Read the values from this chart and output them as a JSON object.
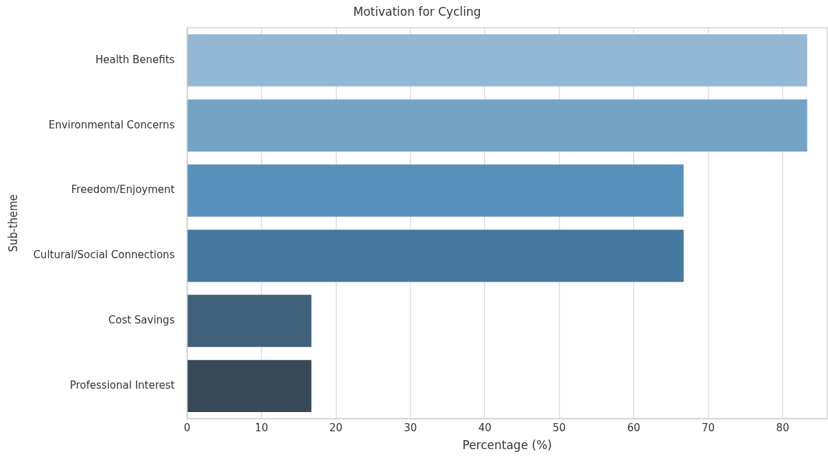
{
  "chart_data": {
    "type": "bar",
    "orientation": "horizontal",
    "title": "Motivation for Cycling",
    "xlabel": "Percentage (%)",
    "ylabel": "Sub-theme",
    "categories": [
      "Health Benefits",
      "Environmental Concerns",
      "Freedom/Enjoyment",
      "Cultural/Social Connections",
      "Cost Savings",
      "Professional Interest"
    ],
    "values": [
      83.3,
      83.3,
      66.7,
      66.7,
      16.7,
      16.7
    ],
    "colors": [
      "#94b8d3",
      "#74a4c5",
      "#5790bb",
      "#44789f",
      "#3f6079",
      "#374956"
    ],
    "xlim": [
      0,
      86
    ],
    "xticks": [
      0,
      10,
      20,
      30,
      40,
      50,
      60,
      70,
      80
    ],
    "grid": "x",
    "legend": false
  }
}
